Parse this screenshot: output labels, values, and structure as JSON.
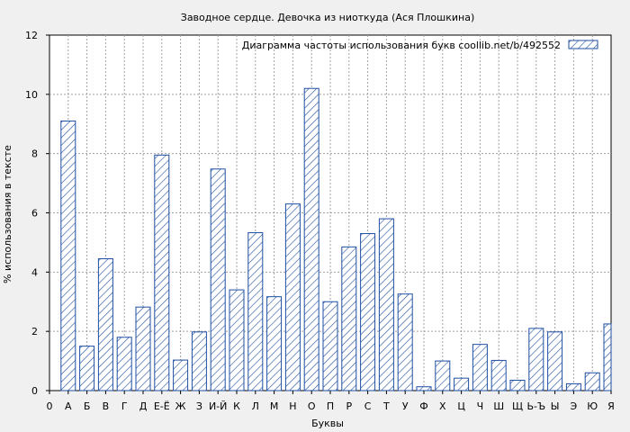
{
  "chart_data": {
    "type": "bar",
    "title": "Заводное сердце. Девочка из ниоткуда (Ася Плошкина)",
    "xlabel": "Буквы",
    "ylabel": "% использования в тексте",
    "legend": "Диаграмма частоты использования букв  coollib.net/b/492552",
    "legend_position": "top-right",
    "grid": true,
    "ylim": [
      0,
      12
    ],
    "yticks": [
      0,
      2,
      4,
      6,
      8,
      10,
      12
    ],
    "categories": [
      "0",
      "А",
      "Б",
      "В",
      "Г",
      "Д",
      "Е-Ё",
      "Ж",
      "З",
      "И-Й",
      "К",
      "Л",
      "М",
      "Н",
      "О",
      "П",
      "Р",
      "С",
      "Т",
      "У",
      "Ф",
      "Х",
      "Ц",
      "Ч",
      "Ш",
      "Щ",
      "Ь-Ъ",
      "Ы",
      "Э",
      "Ю",
      "Я"
    ],
    "values": [
      0,
      9.1,
      1.5,
      4.45,
      1.8,
      2.82,
      7.95,
      1.03,
      1.98,
      7.48,
      3.4,
      5.33,
      3.17,
      6.3,
      10.2,
      3.0,
      4.85,
      5.3,
      5.8,
      3.26,
      0.13,
      1.0,
      0.42,
      1.56,
      1.02,
      0.35,
      2.1,
      1.98,
      0.23,
      0.6,
      2.25
    ],
    "colors": {
      "bar": "#1f4ea3",
      "background": "#f0f0f0",
      "plot": "#ffffff"
    }
  }
}
